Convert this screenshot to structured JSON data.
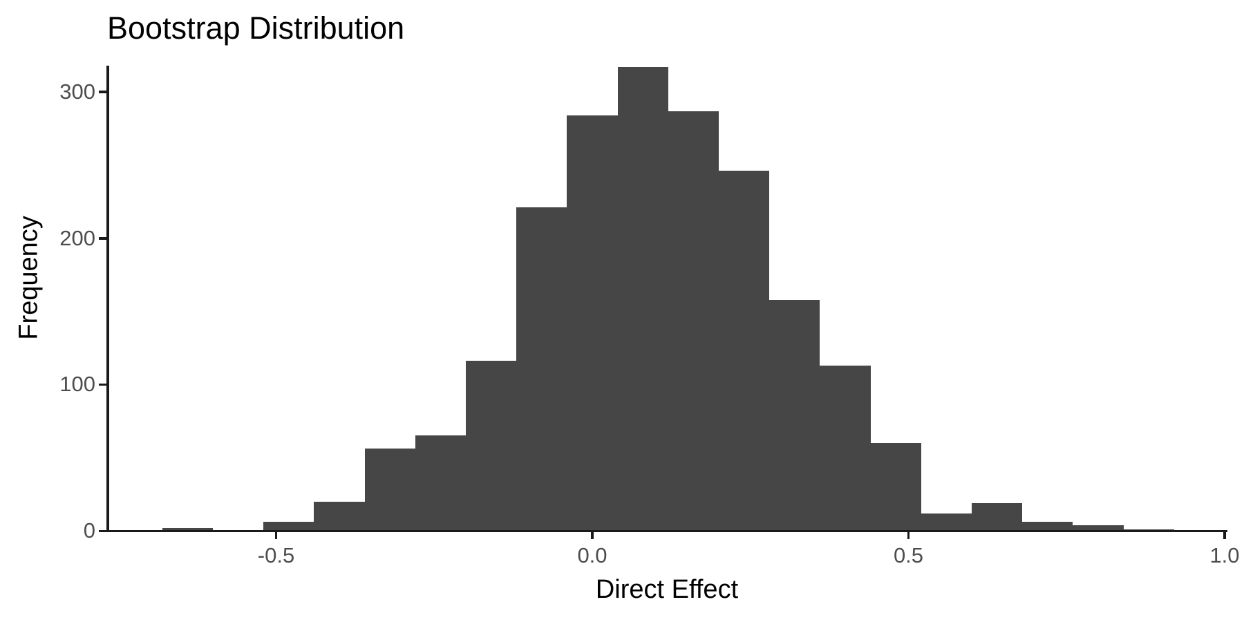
{
  "title": "Bootstrap Distribution",
  "x_axis": {
    "label": "Direct Effect",
    "ticks": [
      {
        "value": -0.5,
        "label": "-0.5"
      },
      {
        "value": 0.0,
        "label": "0.0"
      },
      {
        "value": 0.5,
        "label": "0.5"
      },
      {
        "value": 1.0,
        "label": "1.0"
      }
    ]
  },
  "y_axis": {
    "label": "Frequency",
    "ticks": [
      {
        "value": 0,
        "label": "0"
      },
      {
        "value": 100,
        "label": "100"
      },
      {
        "value": 200,
        "label": "200"
      },
      {
        "value": 300,
        "label": "300"
      }
    ]
  },
  "chart_data": {
    "type": "bar",
    "subtype": "histogram",
    "title": "Bootstrap Distribution",
    "xlabel": "Direct Effect",
    "ylabel": "Frequency",
    "bin_width": 0.08,
    "bin_edges": [
      -0.68,
      -0.6,
      -0.52,
      -0.44,
      -0.36,
      -0.28,
      -0.2,
      -0.12,
      -0.04,
      0.04,
      0.12,
      0.2,
      0.28,
      0.36,
      0.44,
      0.52,
      0.6,
      0.68,
      0.76,
      0.84,
      0.92
    ],
    "frequencies": [
      2,
      0,
      6,
      20,
      56,
      65,
      116,
      221,
      284,
      317,
      287,
      246,
      158,
      113,
      60,
      12,
      19,
      6,
      4,
      1
    ],
    "xlim": [
      -0.76,
      1.0
    ],
    "ylim": [
      0,
      317
    ],
    "grid": false,
    "legend": false
  },
  "colors": {
    "bar_fill": "#464646",
    "axis_line": "#1a1a1a",
    "tick_label": "#4d4d4d",
    "text": "#000000",
    "background": "#ffffff"
  }
}
